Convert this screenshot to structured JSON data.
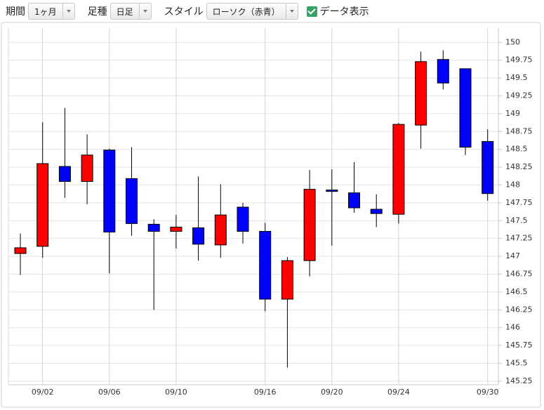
{
  "toolbar": {
    "period_label": "期間",
    "period": "1ヶ月",
    "bar_label": "足種",
    "bar": "日足",
    "style_label": "スタイル",
    "style": "ローソク（赤青）",
    "show_data": "データ表示",
    "show_data_checked": true
  },
  "chart_data": {
    "type": "candlestick",
    "categories": [
      null,
      "09/02",
      null,
      null,
      "09/06",
      null,
      null,
      "09/10",
      null,
      null,
      null,
      "09/16",
      null,
      null,
      "09/20",
      null,
      null,
      "09/24",
      null,
      null,
      null,
      "09/30"
    ],
    "open": [
      147.04,
      147.14,
      148.26,
      148.05,
      148.49,
      148.09,
      147.45,
      147.35,
      147.4,
      147.16,
      147.69,
      147.35,
      146.4,
      146.94,
      147.93,
      147.89,
      147.66,
      147.59,
      148.84,
      149.76,
      149.63,
      148.61
    ],
    "high": [
      147.32,
      148.88,
      149.08,
      148.71,
      148.51,
      148.53,
      147.52,
      147.58,
      148.12,
      148.01,
      147.75,
      147.47,
      146.99,
      148.21,
      148.22,
      148.32,
      147.87,
      148.87,
      149.87,
      149.89,
      149.63,
      148.78
    ],
    "low": [
      146.74,
      146.98,
      147.82,
      147.73,
      146.76,
      147.29,
      146.25,
      147.11,
      146.94,
      146.98,
      147.18,
      146.23,
      145.44,
      146.72,
      147.15,
      147.61,
      147.41,
      147.46,
      148.51,
      149.34,
      148.42,
      147.78
    ],
    "close": [
      147.12,
      148.3,
      148.05,
      148.42,
      147.34,
      147.46,
      147.35,
      147.41,
      147.17,
      147.58,
      147.35,
      146.4,
      146.94,
      147.94,
      147.91,
      147.68,
      147.6,
      148.85,
      149.73,
      149.43,
      148.53,
      147.88
    ],
    "up_color": "#ff0000",
    "down_color": "#0000ff",
    "ylim": [
      145.2,
      150.2
    ],
    "yticks": [
      150,
      149.75,
      149.5,
      149.25,
      149,
      148.75,
      148.5,
      148.25,
      148,
      147.75,
      147.5,
      147.25,
      147,
      146.75,
      146.5,
      146.25,
      146,
      145.75,
      145.5,
      145.25
    ],
    "grid": true
  }
}
